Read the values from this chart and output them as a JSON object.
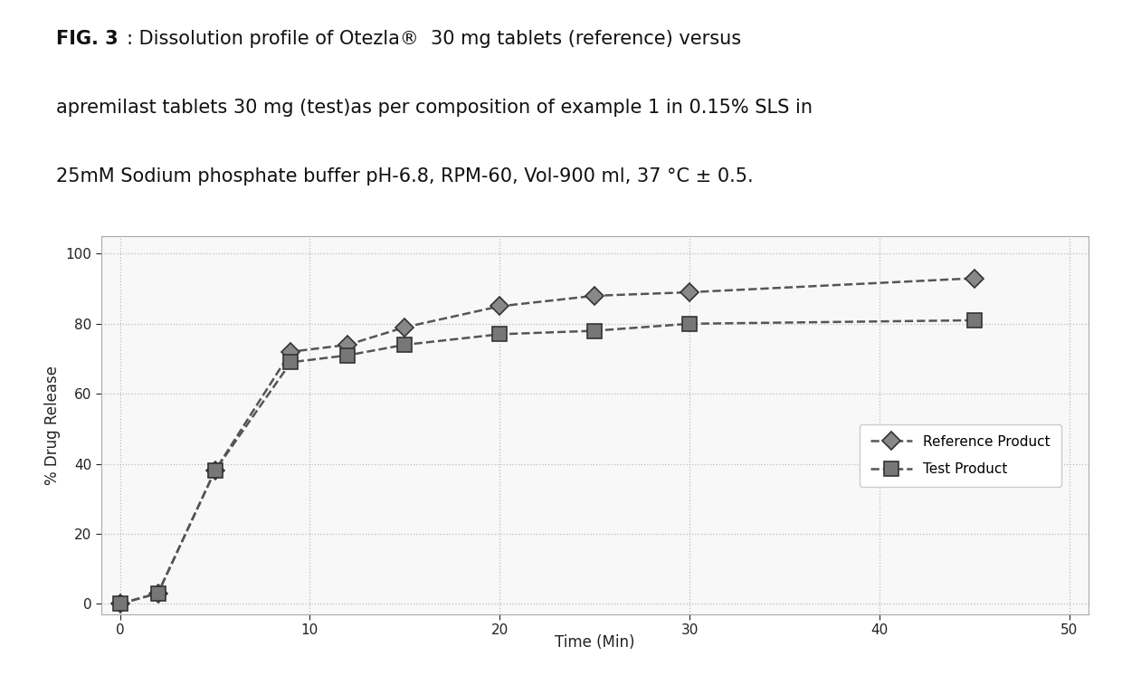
{
  "fig3_bold": "FIG. 3",
  "title_rest_line1": ": Dissolution profile of Otezla®  30 mg tablets (reference) versus",
  "title_line2": "apremilast tablets 30 mg (test)as per composition of example 1 in 0.15% SLS in",
  "title_line3": "25mM Sodium phosphate buffer pH-6.8, RPM-60, Vol-900 ml, 37 °C ± 0.5.",
  "reference_x": [
    0,
    2,
    5,
    9,
    12,
    15,
    20,
    25,
    30,
    45
  ],
  "reference_y": [
    0,
    3,
    38,
    72,
    74,
    79,
    85,
    88,
    89,
    93
  ],
  "test_x": [
    0,
    2,
    5,
    9,
    12,
    15,
    20,
    25,
    30,
    45
  ],
  "test_y": [
    0,
    3,
    38,
    69,
    71,
    74,
    77,
    78,
    80,
    81
  ],
  "xlabel": "Time (Min)",
  "ylabel": "% Drug Release",
  "xlim": [
    -1,
    51
  ],
  "ylim": [
    -3,
    105
  ],
  "xticks": [
    0,
    10,
    20,
    30,
    40,
    50
  ],
  "yticks": [
    0,
    20,
    40,
    60,
    80,
    100
  ],
  "legend_ref": "Reference Product",
  "legend_test": "Test Product",
  "line_color": "#555555",
  "background_color": "#ffffff",
  "plot_bg_color": "#f8f8f8",
  "grid_color": "#bbbbbb",
  "fig_width": 12.4,
  "fig_height": 7.46
}
